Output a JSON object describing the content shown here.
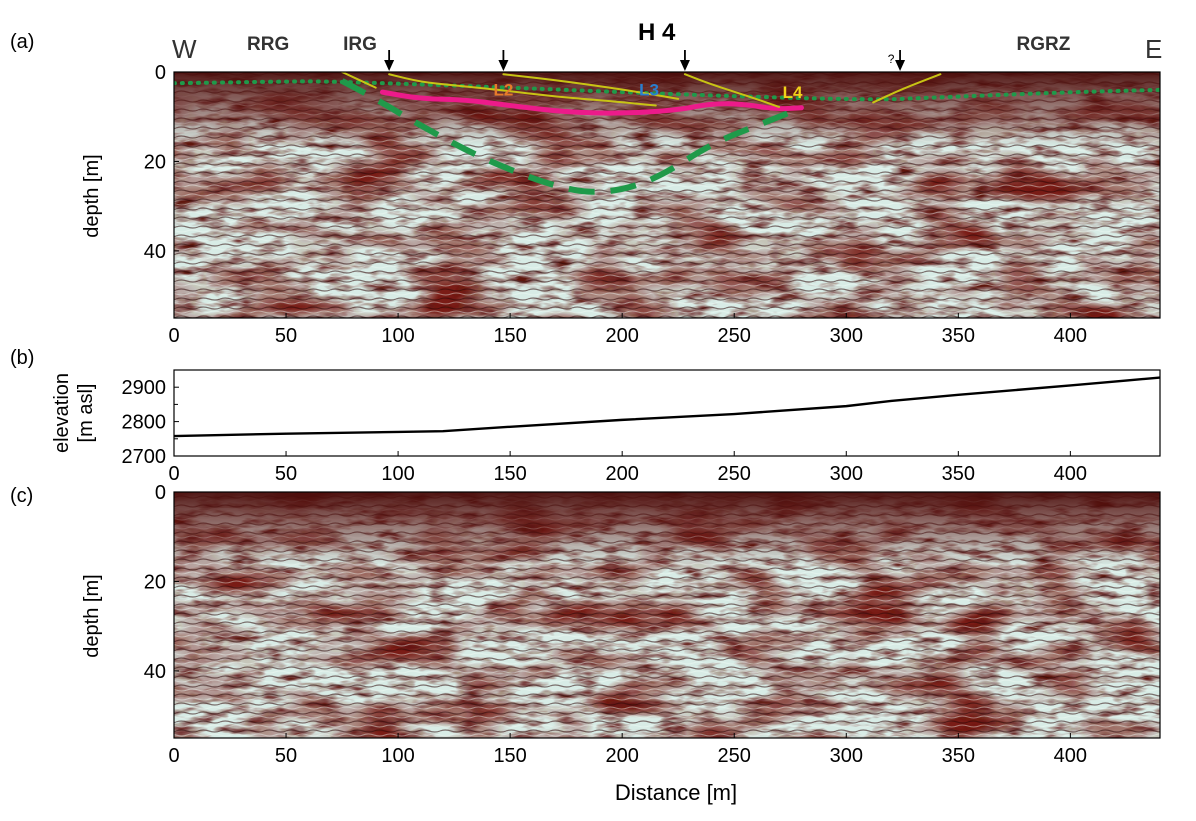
{
  "figure": {
    "panel_a_label": "(a)",
    "panel_b_label": "(b)",
    "panel_c_label": "(c)",
    "x_axis_label": "Distance [m]"
  },
  "colors": {
    "radar_dark": "#5a1210",
    "radar_mid": "#a04a44",
    "radar_light": "#d8ece6",
    "green_line": "#1f9a4a",
    "magenta_line": "#ec1b8a",
    "yellow_line": "#c8c414",
    "L2_color": "#e87a2a",
    "L3_color": "#2a7fd0",
    "L4_color": "#f2d21a"
  },
  "chart_data": [
    {
      "id": "panel-a",
      "type": "heatmap",
      "description_title": "H 4",
      "xlabel": "",
      "ylabel": "depth [m]",
      "xlim": [
        0,
        440
      ],
      "ylim": [
        55,
        0
      ],
      "xticks": [
        0,
        50,
        100,
        150,
        200,
        250,
        300,
        350,
        400
      ],
      "yticks": [
        0,
        20,
        40
      ],
      "side_labels": {
        "west": "W",
        "east": "E"
      },
      "zone_labels": [
        {
          "text": "RRG",
          "x": 42
        },
        {
          "text": "IRG",
          "x": 83
        },
        {
          "text": "RGRZ",
          "x": 388
        }
      ],
      "arrows": [
        {
          "x": 96,
          "note": ""
        },
        {
          "x": 147,
          "note": ""
        },
        {
          "x": 228,
          "note": ""
        },
        {
          "x": 324,
          "note": "?"
        }
      ],
      "layer_labels": [
        {
          "text": "L2",
          "x": 147,
          "depth": 3.5,
          "color_key": "L2_color"
        },
        {
          "text": "L3",
          "x": 212,
          "depth": 3.5,
          "color_key": "L3_color"
        },
        {
          "text": "L4",
          "x": 276,
          "depth": 4,
          "color_key": "L4_color"
        }
      ],
      "series": [
        {
          "name": "green-dotted-surface",
          "style": "dotted",
          "color_key": "green_line",
          "x": [
            0,
            40,
            75,
            300,
            350,
            400,
            440
          ],
          "y": [
            2.5,
            2.2,
            2.0,
            6.5,
            5.5,
            4.5,
            4.0
          ]
        },
        {
          "name": "green-dashed-basin",
          "style": "dashed",
          "color_key": "green_line",
          "x": [
            75,
            90,
            110,
            140,
            175,
            195,
            215,
            240,
            260,
            280
          ],
          "y": [
            2.0,
            6.0,
            12.0,
            20.0,
            26.5,
            27.0,
            24.0,
            16.0,
            12.0,
            8.0
          ]
        },
        {
          "name": "magenta-reflector",
          "style": "solid",
          "color_key": "magenta_line",
          "x": [
            93,
            110,
            130,
            150,
            175,
            200,
            225,
            240,
            255,
            268,
            280
          ],
          "y": [
            4.5,
            6.0,
            6.2,
            7.5,
            9.0,
            9.3,
            8.5,
            7.0,
            7.2,
            8.3,
            8.0
          ]
        },
        {
          "name": "yellow-L2-upper",
          "style": "solid",
          "color_key": "yellow_line",
          "x": [
            96,
            110,
            125,
            145,
            170,
            195,
            215
          ],
          "y": [
            0.5,
            2.2,
            3.0,
            4.0,
            5.5,
            6.5,
            7.5
          ]
        },
        {
          "name": "yellow-L3-upper",
          "style": "solid",
          "color_key": "yellow_line",
          "x": [
            147,
            165,
            185,
            205,
            225
          ],
          "y": [
            0.5,
            1.5,
            2.8,
            4.3,
            6.0
          ]
        },
        {
          "name": "yellow-L4-upper",
          "style": "solid",
          "color_key": "yellow_line",
          "x": [
            228,
            240,
            255,
            270
          ],
          "y": [
            0.5,
            2.8,
            5.2,
            7.8
          ]
        },
        {
          "name": "yellow-east",
          "style": "solid",
          "color_key": "yellow_line",
          "x": [
            312,
            325,
            342
          ],
          "y": [
            6.8,
            3.8,
            0.5
          ]
        },
        {
          "name": "yellow-west",
          "style": "solid",
          "color_key": "yellow_line",
          "x": [
            75,
            90
          ],
          "y": [
            0.0,
            3.5
          ]
        }
      ]
    },
    {
      "id": "panel-b",
      "type": "line",
      "xlabel": "",
      "ylabel": "elevation [m asl]",
      "ylabel_line1": "elevation",
      "ylabel_line2": "[m asl]",
      "xlim": [
        0,
        440
      ],
      "ylim": [
        2700,
        2950
      ],
      "xticks": [
        0,
        50,
        100,
        150,
        200,
        250,
        300,
        350,
        400
      ],
      "yticks": [
        2700,
        2800,
        2900
      ],
      "series": [
        {
          "name": "elevation-profile",
          "x": [
            0,
            50,
            100,
            120,
            150,
            200,
            250,
            300,
            320,
            350,
            400,
            440
          ],
          "y": [
            2758,
            2765,
            2770,
            2772,
            2785,
            2805,
            2822,
            2845,
            2860,
            2878,
            2905,
            2928
          ]
        }
      ]
    },
    {
      "id": "panel-c",
      "type": "heatmap",
      "xlabel": "Distance [m]",
      "ylabel": "depth [m]",
      "xlim": [
        0,
        440
      ],
      "ylim": [
        55,
        0
      ],
      "xticks": [
        0,
        50,
        100,
        150,
        200,
        250,
        300,
        350,
        400
      ],
      "yticks": [
        0,
        20,
        40
      ]
    }
  ]
}
